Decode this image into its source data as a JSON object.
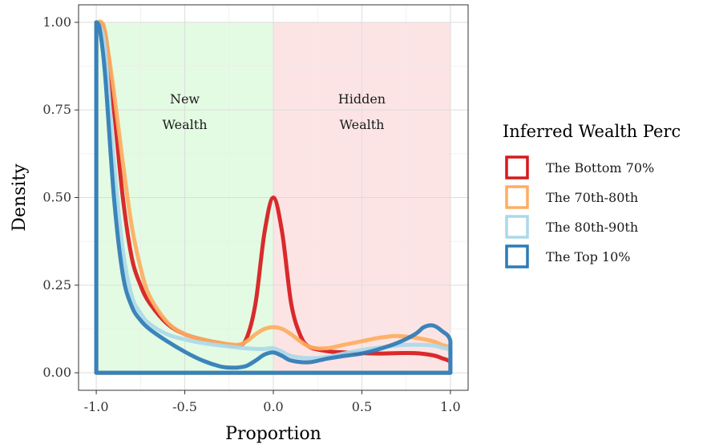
{
  "chart_data": {
    "type": "line",
    "xlabel": "Proportion",
    "ylabel": "Density",
    "xlim": [
      -1.1,
      1.1
    ],
    "ylim": [
      -0.05,
      1.05
    ],
    "x_ticks": [
      -1.0,
      -0.5,
      0.0,
      0.5,
      1.0
    ],
    "x_tick_labels": [
      "-1.0",
      "-0.5",
      "0.0",
      "0.5",
      "1.0"
    ],
    "y_ticks": [
      0.0,
      0.25,
      0.5,
      0.75,
      1.0
    ],
    "y_tick_labels": [
      "0.00",
      "0.25",
      "0.50",
      "0.75",
      "1.00"
    ],
    "grid": true,
    "regions": [
      {
        "x_start": -1.0,
        "x_end": 0.0,
        "y_top": 1.0,
        "color": "#e3fbe3",
        "label_lines": [
          "New",
          "Wealth"
        ],
        "label_x": -0.5,
        "label_y": 0.75
      },
      {
        "x_start": 0.0,
        "x_end": 1.0,
        "y_top": 1.0,
        "color": "#fde4e4",
        "label_lines": [
          "Hidden",
          "Wealth"
        ],
        "label_x": 0.5,
        "label_y": 0.75
      }
    ],
    "legend": {
      "title": "Inferred Wealth Perc",
      "position": "right"
    },
    "series": [
      {
        "name": "The Bottom 70%",
        "color": "#d7191c",
        "x": [
          -1.0,
          -0.95,
          -0.9,
          -0.85,
          -0.8,
          -0.75,
          -0.7,
          -0.6,
          -0.5,
          -0.4,
          -0.3,
          -0.2,
          -0.15,
          -0.1,
          -0.05,
          0.0,
          0.05,
          0.1,
          0.15,
          0.2,
          0.3,
          0.4,
          0.5,
          0.6,
          0.7,
          0.8,
          0.9,
          0.95,
          1.0,
          1.0
        ],
        "y": [
          1.0,
          0.97,
          0.75,
          0.5,
          0.33,
          0.25,
          0.2,
          0.14,
          0.11,
          0.095,
          0.085,
          0.078,
          0.1,
          0.2,
          0.4,
          0.5,
          0.4,
          0.2,
          0.11,
          0.075,
          0.062,
          0.058,
          0.056,
          0.055,
          0.056,
          0.056,
          0.05,
          0.042,
          0.03,
          0.0
        ]
      },
      {
        "name": "The 70th-80th",
        "color": "#fdae61",
        "x": [
          -1.0,
          -0.97,
          -0.95,
          -0.9,
          -0.85,
          -0.8,
          -0.75,
          -0.7,
          -0.6,
          -0.5,
          -0.4,
          -0.3,
          -0.2,
          -0.15,
          -0.1,
          -0.05,
          0.0,
          0.05,
          0.1,
          0.2,
          0.3,
          0.4,
          0.5,
          0.6,
          0.7,
          0.8,
          0.9,
          0.95,
          1.0,
          1.0
        ],
        "y": [
          1.0,
          1.0,
          0.97,
          0.8,
          0.6,
          0.42,
          0.3,
          0.22,
          0.145,
          0.11,
          0.095,
          0.085,
          0.08,
          0.09,
          0.11,
          0.125,
          0.13,
          0.125,
          0.11,
          0.075,
          0.07,
          0.08,
          0.09,
          0.1,
          0.105,
          0.1,
          0.09,
          0.08,
          0.065,
          0.0
        ]
      },
      {
        "name": "The 80th-90th",
        "color": "#abd9e9",
        "x": [
          -1.0,
          -0.98,
          -0.95,
          -0.9,
          -0.85,
          -0.8,
          -0.75,
          -0.7,
          -0.6,
          -0.5,
          -0.4,
          -0.3,
          -0.2,
          -0.1,
          -0.05,
          0.0,
          0.05,
          0.1,
          0.2,
          0.3,
          0.4,
          0.5,
          0.6,
          0.7,
          0.8,
          0.9,
          0.95,
          1.0,
          1.0
        ],
        "y": [
          1.0,
          0.99,
          0.92,
          0.6,
          0.35,
          0.22,
          0.17,
          0.14,
          0.11,
          0.095,
          0.085,
          0.078,
          0.072,
          0.068,
          0.068,
          0.07,
          0.06,
          0.048,
          0.042,
          0.045,
          0.055,
          0.065,
          0.072,
          0.078,
          0.08,
          0.078,
          0.072,
          0.06,
          0.0
        ]
      },
      {
        "name": "The Top 10%",
        "color": "#2c7bb6",
        "x": [
          -1.0,
          -0.98,
          -0.95,
          -0.9,
          -0.85,
          -0.8,
          -0.75,
          -0.7,
          -0.6,
          -0.5,
          -0.4,
          -0.3,
          -0.25,
          -0.2,
          -0.15,
          -0.1,
          -0.05,
          0.0,
          0.05,
          0.1,
          0.2,
          0.3,
          0.4,
          0.5,
          0.6,
          0.7,
          0.8,
          0.85,
          0.9,
          0.95,
          1.0,
          1.0
        ],
        "y": [
          1.0,
          0.98,
          0.85,
          0.5,
          0.28,
          0.19,
          0.15,
          0.125,
          0.09,
          0.06,
          0.035,
          0.018,
          0.015,
          0.015,
          0.02,
          0.035,
          0.052,
          0.058,
          0.048,
          0.035,
          0.03,
          0.04,
          0.048,
          0.055,
          0.068,
          0.085,
          0.11,
          0.13,
          0.135,
          0.12,
          0.09,
          0.0
        ]
      }
    ]
  }
}
